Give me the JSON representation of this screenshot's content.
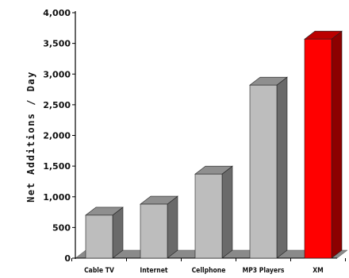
{
  "chart_data": {
    "type": "bar",
    "style": "3d",
    "categories": [
      "Cable TV",
      "Internet",
      "Cellphone",
      "MP3 Players",
      "XM"
    ],
    "values": [
      700,
      880,
      1370,
      2820,
      3570
    ],
    "ylabel": "Net Additions / Day",
    "xlabel": "",
    "ylim": [
      0,
      4000
    ],
    "yticks": [
      0,
      500,
      1000,
      1500,
      2000,
      2500,
      3000,
      3500,
      4000
    ],
    "ytick_labels": [
      "0",
      "500",
      "1,000",
      "1,500",
      "2,000",
      "2,500",
      "3,000",
      "3,500",
      "4,000"
    ],
    "grid": false,
    "legend": "none",
    "colors": {
      "default_front": "#bdbdbd",
      "default_top": "#8f8f8f",
      "default_side": "#6a6a6a",
      "highlight_front": "#ff0000",
      "highlight_top": "#bb0000",
      "highlight_side": "#8c0000",
      "floor": "#8a8a8a",
      "axis": "#000000"
    },
    "highlight_category": "XM"
  }
}
